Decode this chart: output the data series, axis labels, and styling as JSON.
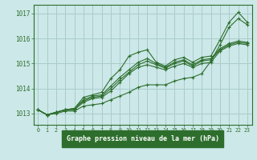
{
  "title": "Graphe pression niveau de la mer (hPa)",
  "bg_color": "#cce8e8",
  "grid_color": "#aacccc",
  "label_bg_color": "#2d6e2d",
  "line_color": "#2d6e2d",
  "xlim": [
    -0.5,
    23.5
  ],
  "ylim": [
    1012.55,
    1017.35
  ],
  "yticks": [
    1013,
    1014,
    1015,
    1016,
    1017
  ],
  "xticks": [
    0,
    1,
    2,
    3,
    4,
    5,
    6,
    7,
    8,
    9,
    10,
    11,
    12,
    13,
    14,
    15,
    16,
    17,
    18,
    19,
    20,
    21,
    22,
    23
  ],
  "series": [
    [
      1013.15,
      1012.95,
      1013.0,
      1013.1,
      1013.1,
      1013.3,
      1013.35,
      1013.4,
      1013.55,
      1013.7,
      1013.85,
      1014.05,
      1014.15,
      1014.15,
      1014.15,
      1014.3,
      1014.4,
      1014.45,
      1014.6,
      1015.1,
      1015.75,
      1016.45,
      1016.8,
      1016.55
    ],
    [
      1013.15,
      1012.95,
      1013.05,
      1013.15,
      1013.15,
      1013.45,
      1013.6,
      1013.65,
      1013.9,
      1014.25,
      1014.6,
      1014.85,
      1014.95,
      1014.85,
      1014.75,
      1014.9,
      1015.0,
      1014.85,
      1015.0,
      1015.05,
      1015.5,
      1015.7,
      1015.8,
      1015.75
    ],
    [
      1013.15,
      1012.95,
      1013.05,
      1013.15,
      1013.2,
      1013.5,
      1013.65,
      1013.7,
      1014.0,
      1014.35,
      1014.65,
      1014.95,
      1015.1,
      1014.95,
      1014.82,
      1015.0,
      1015.1,
      1014.9,
      1015.1,
      1015.15,
      1015.55,
      1015.75,
      1015.85,
      1015.8
    ],
    [
      1013.15,
      1012.95,
      1013.05,
      1013.15,
      1013.2,
      1013.55,
      1013.7,
      1013.75,
      1014.1,
      1014.45,
      1014.75,
      1015.05,
      1015.2,
      1015.0,
      1014.85,
      1015.05,
      1015.15,
      1014.95,
      1015.15,
      1015.2,
      1015.6,
      1015.8,
      1015.9,
      1015.85
    ]
  ],
  "series_high": [
    1013.15,
    1012.95,
    1013.05,
    1013.15,
    1013.2,
    1013.65,
    1013.75,
    1013.85,
    1014.4,
    1014.75,
    1015.3,
    1015.45,
    1015.55,
    1015.05,
    1014.9,
    1015.15,
    1015.25,
    1015.05,
    1015.25,
    1015.3,
    1015.95,
    1016.65,
    1017.05,
    1016.65
  ]
}
